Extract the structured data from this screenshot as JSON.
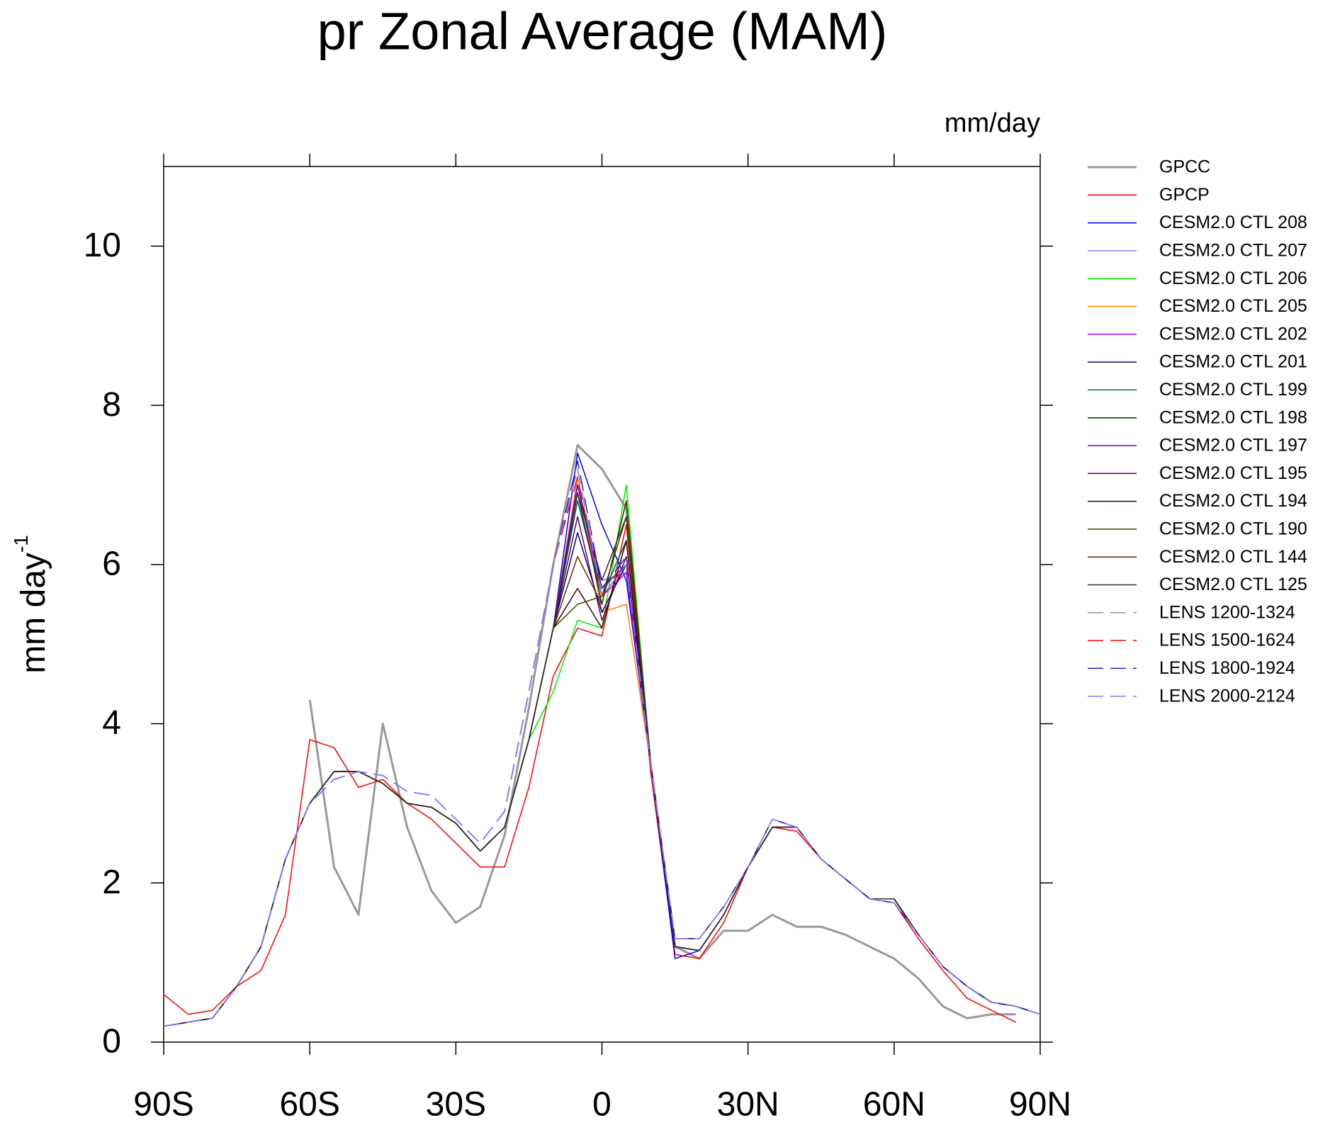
{
  "chart_data": {
    "type": "line",
    "title": "pr Zonal Average (MAM)",
    "units": "mm/day",
    "y_label": "mm day",
    "y_label_superscript": "-1",
    "xlim": [
      -90,
      90
    ],
    "ylim": [
      0,
      11
    ],
    "xticks": [
      {
        "value": -90,
        "label": "90S"
      },
      {
        "value": -60,
        "label": "60S"
      },
      {
        "value": -30,
        "label": "30S"
      },
      0,
      {
        "value": 30,
        "label": "30N"
      },
      {
        "value": 60,
        "label": "60N"
      },
      {
        "value": 90,
        "label": "90N"
      }
    ],
    "yticks": [
      0,
      2,
      4,
      6,
      8,
      10
    ],
    "grid": false,
    "legend": "outside-right",
    "x": [
      -90,
      -85,
      -80,
      -75,
      -70,
      -65,
      -60,
      -55,
      -50,
      -45,
      -40,
      -35,
      -30,
      -25,
      -20,
      -15,
      -10,
      -5,
      0,
      5,
      10,
      15,
      20,
      25,
      30,
      35,
      40,
      45,
      50,
      55,
      60,
      65,
      70,
      75,
      80,
      85,
      90
    ],
    "series": [
      {
        "name": "GPCC",
        "color": "#999999",
        "width": 3,
        "style": "solid",
        "values": [
          null,
          null,
          null,
          null,
          null,
          null,
          4.3,
          2.2,
          1.6,
          4.0,
          2.7,
          1.9,
          1.5,
          1.7,
          2.6,
          4.2,
          6.0,
          7.5,
          7.2,
          6.7,
          3.5,
          1.2,
          1.05,
          1.4,
          1.4,
          1.6,
          1.45,
          1.45,
          1.35,
          1.2,
          1.05,
          0.8,
          0.45,
          0.3,
          0.35,
          0.35,
          null
        ]
      },
      {
        "name": "GPCP",
        "color": "#ff0000",
        "width": 1.5,
        "style": "solid",
        "values": [
          0.6,
          0.35,
          0.4,
          0.7,
          0.9,
          1.6,
          3.8,
          3.7,
          3.2,
          3.3,
          3.0,
          2.8,
          2.5,
          2.2,
          2.2,
          3.2,
          4.6,
          5.2,
          5.1,
          6.5,
          3.4,
          1.1,
          1.05,
          1.5,
          2.2,
          2.7,
          2.65,
          2.3,
          2.05,
          1.8,
          1.75,
          1.3,
          0.9,
          0.55,
          0.4,
          0.25,
          null
        ]
      },
      {
        "name": "CESM2.0 CTL 208",
        "color": "#0000ff",
        "width": 1.5,
        "style": "solid",
        "values": [
          0.2,
          0.25,
          0.3,
          0.7,
          1.2,
          2.3,
          3.0,
          3.4,
          3.4,
          3.25,
          3.0,
          2.95,
          2.75,
          2.4,
          2.7,
          3.8,
          5.2,
          7.4,
          6.5,
          5.8,
          3.5,
          1.05,
          1.15,
          1.6,
          2.2,
          2.7,
          2.7,
          2.3,
          2.05,
          1.8,
          1.8,
          1.35,
          0.95,
          0.7,
          0.5,
          0.45,
          0.35
        ]
      },
      {
        "name": "CESM2.0 CTL 207",
        "color": "#8080ff",
        "width": 1.5,
        "style": "solid",
        "values": [
          0.2,
          0.25,
          0.3,
          0.7,
          1.2,
          2.3,
          3.0,
          3.4,
          3.4,
          3.25,
          3.0,
          2.95,
          2.75,
          2.4,
          2.7,
          3.8,
          5.2,
          7.0,
          5.8,
          5.9,
          3.5,
          1.2,
          1.15,
          1.6,
          2.2,
          2.7,
          2.7,
          2.3,
          2.05,
          1.8,
          1.8,
          1.35,
          0.95,
          0.7,
          0.5,
          0.45,
          0.35
        ]
      },
      {
        "name": "CESM2.0 CTL 206",
        "color": "#00ee00",
        "width": 1.5,
        "style": "solid",
        "values": [
          0.2,
          0.25,
          0.3,
          0.7,
          1.2,
          2.3,
          3.0,
          3.4,
          3.4,
          3.25,
          3.0,
          2.95,
          2.75,
          2.4,
          2.7,
          3.8,
          4.4,
          5.3,
          5.2,
          7.0,
          3.5,
          1.2,
          1.15,
          1.6,
          2.2,
          2.7,
          2.7,
          2.3,
          2.05,
          1.8,
          1.8,
          1.35,
          0.95,
          0.7,
          0.5,
          0.45,
          0.35
        ]
      },
      {
        "name": "CESM2.0 CTL 205",
        "color": "#ff8000",
        "width": 1.5,
        "style": "solid",
        "values": [
          0.2,
          0.25,
          0.3,
          0.7,
          1.2,
          2.3,
          3.0,
          3.4,
          3.4,
          3.25,
          3.0,
          2.95,
          2.75,
          2.4,
          2.7,
          3.8,
          5.2,
          7.1,
          5.4,
          5.5,
          3.5,
          1.2,
          1.15,
          1.6,
          2.2,
          2.7,
          2.7,
          2.3,
          2.05,
          1.8,
          1.8,
          1.35,
          0.95,
          0.7,
          0.5,
          0.45,
          0.35
        ]
      },
      {
        "name": "CESM2.0 CTL 202",
        "color": "#a000ff",
        "width": 1.5,
        "style": "solid",
        "values": [
          0.2,
          0.25,
          0.3,
          0.7,
          1.2,
          2.3,
          3.0,
          3.4,
          3.4,
          3.25,
          3.0,
          2.95,
          2.75,
          2.4,
          2.7,
          3.8,
          5.2,
          7.0,
          5.6,
          5.9,
          3.5,
          1.2,
          1.15,
          1.6,
          2.2,
          2.7,
          2.7,
          2.3,
          2.05,
          1.8,
          1.8,
          1.35,
          0.95,
          0.7,
          0.5,
          0.45,
          0.35
        ]
      },
      {
        "name": "CESM2.0 CTL 201",
        "color": "#000080",
        "width": 1.5,
        "style": "solid",
        "values": [
          0.2,
          0.25,
          0.3,
          0.7,
          1.2,
          2.3,
          3.0,
          3.4,
          3.4,
          3.25,
          3.0,
          2.95,
          2.75,
          2.4,
          2.7,
          3.8,
          5.2,
          6.4,
          5.4,
          6.0,
          3.5,
          1.2,
          1.15,
          1.6,
          2.2,
          2.7,
          2.7,
          2.3,
          2.05,
          1.8,
          1.8,
          1.35,
          0.95,
          0.7,
          0.5,
          0.45,
          0.35
        ]
      },
      {
        "name": "CESM2.0 CTL 199",
        "color": "#006060",
        "width": 1.5,
        "style": "solid",
        "values": [
          0.2,
          0.25,
          0.3,
          0.7,
          1.2,
          2.3,
          3.0,
          3.4,
          3.4,
          3.25,
          3.0,
          2.95,
          2.75,
          2.4,
          2.7,
          3.8,
          5.2,
          6.8,
          5.6,
          6.3,
          3.5,
          1.2,
          1.15,
          1.6,
          2.2,
          2.7,
          2.7,
          2.3,
          2.05,
          1.8,
          1.8,
          1.35,
          0.95,
          0.7,
          0.5,
          0.45,
          0.35
        ]
      },
      {
        "name": "CESM2.0 CTL 198",
        "color": "#004000",
        "width": 1.5,
        "style": "solid",
        "values": [
          0.2,
          0.25,
          0.3,
          0.7,
          1.2,
          2.3,
          3.0,
          3.4,
          3.4,
          3.25,
          3.0,
          2.95,
          2.75,
          2.4,
          2.7,
          3.8,
          5.2,
          6.9,
          5.5,
          6.8,
          3.5,
          1.2,
          1.15,
          1.6,
          2.2,
          2.7,
          2.7,
          2.3,
          2.05,
          1.8,
          1.8,
          1.35,
          0.95,
          0.7,
          0.5,
          0.45,
          0.35
        ]
      },
      {
        "name": "CESM2.0 CTL 197",
        "color": "#6000c0",
        "width": 1.5,
        "style": "solid",
        "values": [
          0.2,
          0.25,
          0.3,
          0.7,
          1.2,
          2.3,
          3.0,
          3.4,
          3.4,
          3.25,
          3.0,
          2.95,
          2.75,
          2.4,
          2.7,
          3.8,
          5.2,
          7.0,
          5.7,
          6.0,
          3.5,
          1.2,
          1.15,
          1.6,
          2.2,
          2.7,
          2.7,
          2.3,
          2.05,
          1.8,
          1.8,
          1.35,
          0.95,
          0.7,
          0.5,
          0.45,
          0.35
        ]
      },
      {
        "name": "CESM2.0 CTL 195",
        "color": "#600060",
        "width": 1.5,
        "style": "solid",
        "values": [
          0.2,
          0.25,
          0.3,
          0.7,
          1.2,
          2.3,
          3.0,
          3.4,
          3.4,
          3.25,
          3.0,
          2.95,
          2.75,
          2.4,
          2.7,
          3.8,
          5.2,
          6.6,
          5.3,
          6.1,
          3.5,
          1.2,
          1.15,
          1.6,
          2.2,
          2.7,
          2.7,
          2.3,
          2.05,
          1.8,
          1.8,
          1.35,
          0.95,
          0.7,
          0.5,
          0.45,
          0.35
        ]
      },
      {
        "name": "CESM2.0 CTL 194",
        "color": "#400000",
        "width": 1.5,
        "style": "solid",
        "values": [
          0.2,
          0.25,
          0.3,
          0.7,
          1.2,
          2.3,
          3.0,
          3.4,
          3.4,
          3.25,
          3.0,
          2.95,
          2.75,
          2.4,
          2.7,
          3.8,
          5.2,
          5.7,
          5.2,
          6.3,
          3.5,
          1.2,
          1.15,
          1.6,
          2.2,
          2.7,
          2.7,
          2.3,
          2.05,
          1.8,
          1.8,
          1.35,
          0.95,
          0.7,
          0.5,
          0.45,
          0.35
        ]
      },
      {
        "name": "CESM2.0 CTL 190",
        "color": "#404000",
        "width": 1.5,
        "style": "solid",
        "values": [
          0.2,
          0.25,
          0.3,
          0.7,
          1.2,
          2.3,
          3.0,
          3.4,
          3.4,
          3.25,
          3.0,
          2.95,
          2.75,
          2.4,
          2.7,
          3.8,
          5.2,
          5.5,
          5.6,
          6.6,
          3.5,
          1.2,
          1.15,
          1.6,
          2.2,
          2.7,
          2.7,
          2.3,
          2.05,
          1.8,
          1.8,
          1.35,
          0.95,
          0.7,
          0.5,
          0.45,
          0.35
        ]
      },
      {
        "name": "CESM2.0 CTL 144",
        "color": "#603000",
        "width": 1.5,
        "style": "solid",
        "values": [
          0.2,
          0.25,
          0.3,
          0.7,
          1.2,
          2.3,
          3.0,
          3.4,
          3.4,
          3.25,
          3.0,
          2.95,
          2.75,
          2.4,
          2.7,
          3.8,
          5.2,
          6.1,
          5.5,
          6.8,
          3.5,
          1.2,
          1.15,
          1.6,
          2.2,
          2.7,
          2.7,
          2.3,
          2.05,
          1.8,
          1.8,
          1.35,
          0.95,
          0.7,
          0.5,
          0.45,
          0.35
        ]
      },
      {
        "name": "CESM2.0 CTL 125",
        "color": "#303030",
        "width": 1.5,
        "style": "solid",
        "values": [
          0.2,
          0.25,
          0.3,
          0.7,
          1.2,
          2.3,
          3.0,
          3.4,
          3.4,
          3.25,
          3.0,
          2.95,
          2.75,
          2.4,
          2.7,
          3.8,
          5.2,
          6.9,
          5.8,
          6.6,
          3.5,
          1.2,
          1.15,
          1.6,
          2.2,
          2.7,
          2.7,
          2.3,
          2.05,
          1.8,
          1.8,
          1.35,
          0.95,
          0.7,
          0.5,
          0.45,
          0.35
        ]
      },
      {
        "name": "LENS 1200-1324",
        "color": "#999999",
        "width": 1.5,
        "style": "dashed",
        "values": [
          0.2,
          0.25,
          0.3,
          0.7,
          1.2,
          2.3,
          3.0,
          3.3,
          3.4,
          3.35,
          3.15,
          3.1,
          2.8,
          2.5,
          2.9,
          4.4,
          6.0,
          7.2,
          5.6,
          6.0,
          3.5,
          1.3,
          1.3,
          1.7,
          2.2,
          2.8,
          2.7,
          2.3,
          2.05,
          1.8,
          1.75,
          1.35,
          0.95,
          0.7,
          0.5,
          0.45,
          0.35
        ]
      },
      {
        "name": "LENS 1500-1624",
        "color": "#ff0000",
        "width": 1.5,
        "style": "dashed",
        "values": [
          0.2,
          0.25,
          0.3,
          0.7,
          1.2,
          2.3,
          3.0,
          3.3,
          3.4,
          3.35,
          3.15,
          3.1,
          2.8,
          2.5,
          2.9,
          4.4,
          6.0,
          7.1,
          5.6,
          6.0,
          3.5,
          1.3,
          1.3,
          1.7,
          2.2,
          2.8,
          2.7,
          2.3,
          2.05,
          1.8,
          1.75,
          1.35,
          0.95,
          0.7,
          0.5,
          0.45,
          0.35
        ]
      },
      {
        "name": "LENS 1800-1924",
        "color": "#2020c0",
        "width": 1.5,
        "style": "dashed",
        "values": [
          0.2,
          0.25,
          0.3,
          0.7,
          1.2,
          2.3,
          3.0,
          3.3,
          3.4,
          3.35,
          3.15,
          3.1,
          2.8,
          2.5,
          2.9,
          4.4,
          6.0,
          7.3,
          5.7,
          6.1,
          3.5,
          1.3,
          1.3,
          1.7,
          2.2,
          2.8,
          2.7,
          2.3,
          2.05,
          1.8,
          1.75,
          1.35,
          0.95,
          0.7,
          0.5,
          0.45,
          0.35
        ]
      },
      {
        "name": "LENS 2000-2124",
        "color": "#8080ff",
        "width": 1.5,
        "style": "dashed",
        "values": [
          0.2,
          0.25,
          0.3,
          0.7,
          1.2,
          2.3,
          3.0,
          3.3,
          3.4,
          3.35,
          3.15,
          3.1,
          2.8,
          2.5,
          2.9,
          4.4,
          6.0,
          7.2,
          5.6,
          6.0,
          3.5,
          1.3,
          1.3,
          1.7,
          2.2,
          2.8,
          2.7,
          2.3,
          2.05,
          1.8,
          1.75,
          1.35,
          0.95,
          0.7,
          0.5,
          0.45,
          0.35
        ]
      }
    ]
  }
}
